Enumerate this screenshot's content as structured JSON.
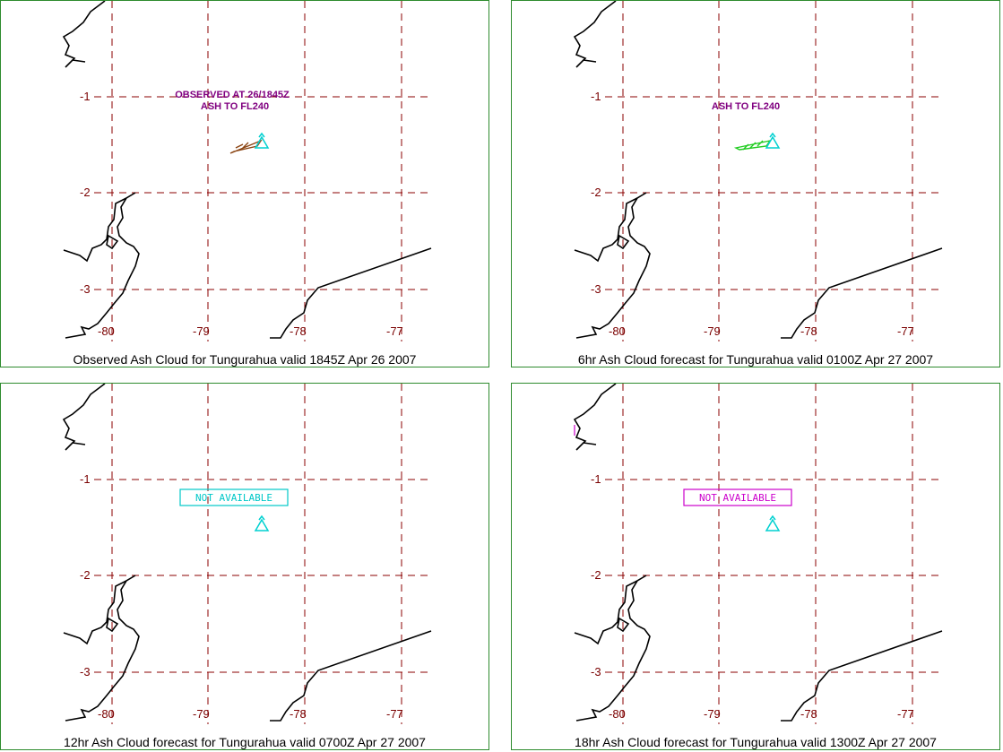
{
  "grid": {
    "lat_labels": [
      "-1",
      "-2",
      "-3"
    ],
    "lon_labels": [
      "-80",
      "-79",
      "-78",
      "-77"
    ]
  },
  "colors": {
    "grid": "#8b0000",
    "coast": "#000000",
    "volcano": "#00d0d0",
    "label_purple": "#800080",
    "obs_cloud": "#8b4513",
    "fc_cloud": "#22cc22",
    "na_cyan": "#00c8c8",
    "na_magenta": "#cc00cc",
    "border": "#2e8b2e"
  },
  "panels": [
    {
      "caption": "Observed Ash Cloud for Tungurahua valid 1845Z Apr 26 2007",
      "label_lines": [
        "OBSERVED AT 26/1845Z",
        "ASH TO FL240"
      ],
      "cloud": "observed"
    },
    {
      "caption": "6hr Ash Cloud forecast for Tungurahua valid 0100Z Apr 27 2007",
      "label_lines": [
        "ASH TO FL240"
      ],
      "cloud": "forecast"
    },
    {
      "caption": "12hr Ash Cloud forecast for Tungurahua valid 0700Z Apr 27 2007",
      "not_available": "NOT AVAILABLE",
      "na_color": "cyan"
    },
    {
      "caption": "18hr Ash Cloud forecast for Tungurahua valid 1300Z Apr 27 2007",
      "not_available": "NOT AVAILABLE",
      "na_color": "magenta"
    }
  ]
}
